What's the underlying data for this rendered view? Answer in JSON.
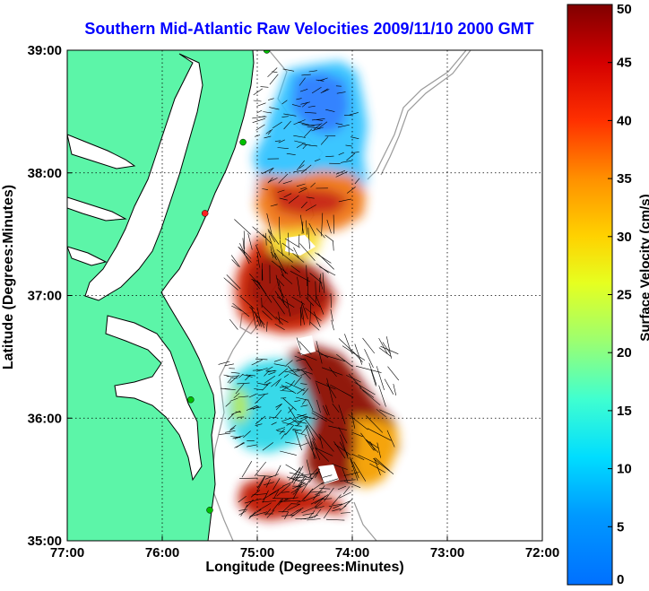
{
  "chart_data": {
    "type": "heatmap",
    "title": "Southern Mid-Atlantic Raw Velocities 2009/11/10 2000 GMT",
    "xlabel": "Longitude (Degrees:Minutes)",
    "ylabel": "Latitude (Degrees:Minutes)",
    "x_ticks": [
      "77:00",
      "76:00",
      "75:00",
      "74:00",
      "73:00",
      "72:00"
    ],
    "y_ticks": [
      "39:00",
      "38:00",
      "37:00",
      "36:00",
      "35:00"
    ],
    "xlim": [
      -77,
      -72
    ],
    "ylim": [
      35,
      39
    ],
    "grid": true,
    "colorbar": {
      "label": "Surface Velocity (cm/s)",
      "ticks": [
        "0",
        "5",
        "10",
        "15",
        "20",
        "25",
        "30",
        "35",
        "40",
        "45",
        "50"
      ],
      "range": [
        0,
        50
      ],
      "colormap": "jet"
    },
    "velocity_regions": [
      {
        "region": "north-upper",
        "lon": -74.6,
        "lat": 38.6,
        "speed_cm_s": 10
      },
      {
        "region": "north-band",
        "lon": -74.6,
        "lat": 37.85,
        "speed_cm_s": 38
      },
      {
        "region": "central",
        "lon": -74.7,
        "lat": 36.9,
        "speed_cm_s": 42
      },
      {
        "region": "south-west",
        "lon": -74.9,
        "lat": 36.1,
        "speed_cm_s": 15
      },
      {
        "region": "south-core",
        "lon": -74.3,
        "lat": 36.0,
        "speed_cm_s": 48
      },
      {
        "region": "south-east",
        "lon": -73.9,
        "lat": 35.8,
        "speed_cm_s": 33
      },
      {
        "region": "south-tip",
        "lon": -74.8,
        "lat": 35.3,
        "speed_cm_s": 45
      }
    ],
    "radar_sites": [
      {
        "lon": -74.9,
        "lat": 39.0,
        "color": "#00c000"
      },
      {
        "lon": -75.15,
        "lat": 38.25,
        "color": "#00c000"
      },
      {
        "lon": -75.55,
        "lat": 37.67,
        "color": "#ff2020"
      },
      {
        "lon": -75.7,
        "lat": 36.15,
        "color": "#00c000"
      },
      {
        "lon": -75.5,
        "lat": 35.25,
        "color": "#00c000"
      }
    ]
  },
  "colors": {
    "title": "#0000ff",
    "land": "#5cf5a8",
    "coastline": "#000000",
    "bathymetry": "#9a9a9a"
  }
}
